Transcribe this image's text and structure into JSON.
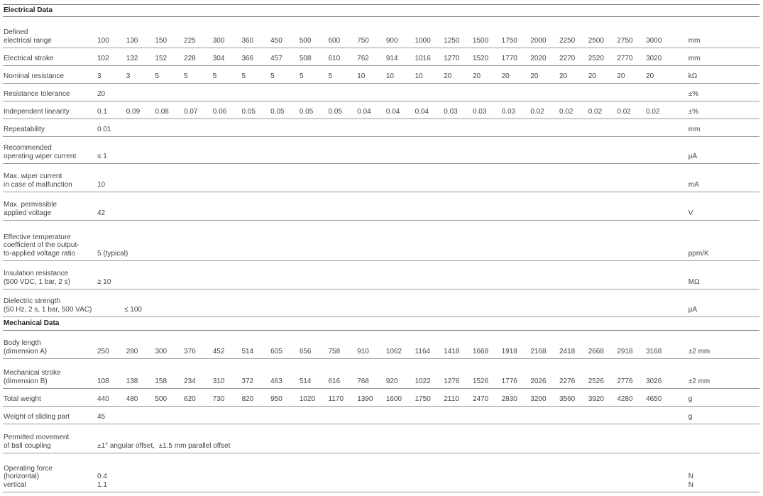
{
  "sections": [
    {
      "title": "Electrical Data",
      "rows": [
        {
          "label": [
            "Defined",
            "electrical range"
          ],
          "values": [
            "100",
            "130",
            "150",
            "225",
            "300",
            "360",
            "450",
            "500",
            "600",
            "750",
            "900",
            "1000",
            "1250",
            "1500",
            "1750",
            "2000",
            "2250",
            "2500",
            "2750",
            "3000"
          ],
          "unit": "mm"
        },
        {
          "label": [
            "Electrical stroke"
          ],
          "values": [
            "102",
            "132",
            "152",
            "228",
            "304",
            "366",
            "457",
            "508",
            "610",
            "762",
            "914",
            "1016",
            "1270",
            "1520",
            "1770",
            "2020",
            "2270",
            "2520",
            "2770",
            "3020"
          ],
          "unit": "mm"
        },
        {
          "label": [
            "Nominal resistance"
          ],
          "values": [
            "3",
            "3",
            "5",
            "5",
            "5",
            "5",
            "5",
            "5",
            "5",
            "10",
            "10",
            "10",
            "20",
            "20",
            "20",
            "20",
            "20",
            "20",
            "20",
            "20"
          ],
          "unit": "kΩ"
        },
        {
          "label": [
            "Resistance tolerance"
          ],
          "values": [
            "20"
          ],
          "unit": "±%"
        },
        {
          "label": [
            "Independent linearity"
          ],
          "values": [
            "0.1",
            "0.09",
            "0.08",
            "0.07",
            "0.06",
            "0.05",
            "0.05",
            "0.05",
            "0.05",
            "0.04",
            "0.04",
            "0.04",
            "0.03",
            "0.03",
            "0.03",
            "0.02",
            "0.02",
            "0.02",
            "0.02",
            "0.02"
          ],
          "unit": "±%"
        },
        {
          "label": [
            "Repeatability"
          ],
          "values": [
            "0.01"
          ],
          "unit": "mm"
        },
        {
          "label": [
            "Recommended",
            "operating wiper current"
          ],
          "values": [
            "≤ 1"
          ],
          "unit": "µA"
        },
        {
          "label": [
            "Max. wiper current",
            "in case of malfunction"
          ],
          "values": [
            "10"
          ],
          "unit": "mA"
        },
        {
          "label": [
            "Max. permissible",
            "applied voltage"
          ],
          "values": [
            "42"
          ],
          "unit": "V"
        },
        {
          "label": [
            "Effective temperature",
            "coefficient of the output-",
            "to-applied voltage ratio"
          ],
          "values": [
            "5 (typical)"
          ],
          "unit": "ppm/K"
        },
        {
          "label": [
            "Insulation resistance",
            "(500 VDC, 1 bar, 2 s)"
          ],
          "values": [
            "≥ 10"
          ],
          "unit": "MΩ"
        },
        {
          "label": [
            "Dielectric strength",
            "(50 Hz, 2 s, 1 bar, 500 VAC)"
          ],
          "values": [
            "≤ 100"
          ],
          "unit": "µA"
        }
      ]
    },
    {
      "title": "Mechanical Data",
      "rows": [
        {
          "label": [
            "Body length",
            "(dimension A)"
          ],
          "values": [
            "250",
            "280",
            "300",
            "376",
            "452",
            "514",
            "605",
            "656",
            "758",
            "910",
            "1062",
            "1164",
            "1418",
            "1668",
            "1918",
            "2168",
            "2418",
            "2668",
            "2918",
            "3168"
          ],
          "unit": "±2 mm"
        },
        {
          "label": [
            "Mechanical stroke",
            "(dimension B)"
          ],
          "values": [
            "108",
            "138",
            "158",
            "234",
            "310",
            "372",
            "463",
            "514",
            "616",
            "768",
            "920",
            "1022",
            "1276",
            "1526",
            "1776",
            "2026",
            "2276",
            "2526",
            "2776",
            "3026"
          ],
          "unit": "±2 mm"
        },
        {
          "label": [
            "Total weight"
          ],
          "values": [
            "440",
            "480",
            "500",
            "620",
            "730",
            "820",
            "950",
            "1020",
            "1170",
            "1390",
            "1600",
            "1750",
            "2110",
            "2470",
            "2830",
            "3200",
            "3560",
            "3920",
            "4280",
            "4650"
          ],
          "unit": "g"
        },
        {
          "label": [
            "Weight of sliding part"
          ],
          "values": [
            "45"
          ],
          "unit": "g"
        },
        {
          "label": [
            "Permitted movement",
            "of ball coupling"
          ],
          "values": [
            "±1° angular offset,  ±1.5 mm parallel offset"
          ]
        },
        {
          "label": [
            "Operating force",
            "(horizontal)",
            "vertical"
          ],
          "values": [
            [
              "0.4",
              "1.1"
            ]
          ],
          "unit": [
            "N",
            "N"
          ]
        }
      ]
    }
  ]
}
